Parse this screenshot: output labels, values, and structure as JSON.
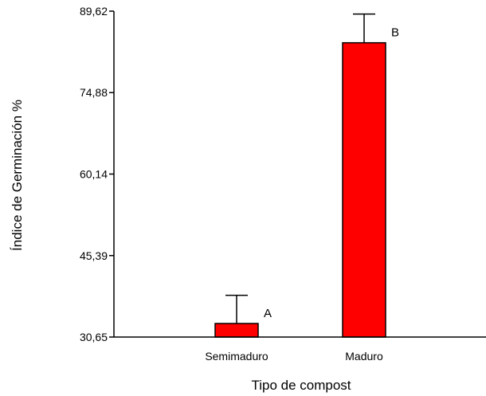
{
  "chart_data": {
    "type": "bar",
    "title": "",
    "xlabel": "Tipo de compost",
    "ylabel": "Índice de Germinación %",
    "categories": [
      "Semimaduro",
      "Maduro"
    ],
    "values": [
      33.1,
      83.9
    ],
    "error_upper": [
      38.2,
      89.1
    ],
    "annotations": [
      "A",
      "B"
    ],
    "yticks": [
      "30,65",
      "45,39",
      "60,14",
      "74,88",
      "89,62"
    ],
    "ytick_values": [
      30.65,
      45.39,
      60.14,
      74.88,
      89.62
    ],
    "ylim": [
      30.65,
      89.62
    ],
    "bar_color": "#ff0000",
    "grid": false,
    "legend": "none"
  }
}
